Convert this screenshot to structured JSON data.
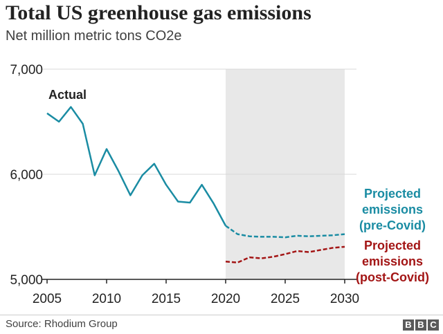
{
  "header": {
    "title": "Total US greenhouse gas emissions",
    "subtitle": "Net million metric tons CO2e"
  },
  "footer": {
    "source": "Source: Rhodium Group",
    "logo_letters": [
      "B",
      "B",
      "C"
    ]
  },
  "colors": {
    "actual": "#1a8ca3",
    "pre_covid": "#1a8ca3",
    "post_covid": "#a31515",
    "projection_band": "#e8e8e8",
    "grid": "#d9d9d9",
    "axis": "#222222"
  },
  "chart_data": {
    "type": "line",
    "title": "Total US greenhouse gas emissions",
    "subtitle": "Net million metric tons CO2e",
    "xlabel": "",
    "ylabel": "",
    "xlim": [
      2005,
      2030
    ],
    "ylim": [
      5000,
      7000
    ],
    "x_ticks": [
      2005,
      2010,
      2015,
      2020,
      2025,
      2030
    ],
    "y_ticks": [
      5000,
      6000,
      7000
    ],
    "y_tick_labels": [
      "5,000",
      "6,000",
      "7,000"
    ],
    "grid": "horizontal",
    "shaded_region": [
      2020,
      2030
    ],
    "annotations": {
      "actual": "Actual",
      "pre_covid": [
        "Projected",
        "emissions",
        "(pre-Covid)"
      ],
      "post_covid": [
        "Projected",
        "emissions",
        "(post-Covid)"
      ]
    },
    "series": [
      {
        "key": "actual",
        "style": "solid",
        "x": [
          2005,
          2006,
          2007,
          2008,
          2009,
          2010,
          2011,
          2012,
          2013,
          2014,
          2015,
          2016,
          2017,
          2018,
          2019,
          2020
        ],
        "values": [
          6580,
          6500,
          6640,
          6480,
          5990,
          6240,
          6030,
          5800,
          5990,
          6100,
          5900,
          5740,
          5730,
          5900,
          5720,
          5510
        ]
      },
      {
        "key": "pre_covid",
        "style": "dashed",
        "x": [
          2020,
          2021,
          2022,
          2023,
          2024,
          2025,
          2026,
          2027,
          2028,
          2029,
          2030
        ],
        "values": [
          5510,
          5430,
          5410,
          5405,
          5405,
          5400,
          5415,
          5410,
          5415,
          5420,
          5430
        ]
      },
      {
        "key": "post_covid",
        "style": "dashed",
        "x": [
          2020,
          2021,
          2022,
          2023,
          2024,
          2025,
          2026,
          2027,
          2028,
          2029,
          2030
        ],
        "values": [
          5170,
          5160,
          5210,
          5200,
          5215,
          5240,
          5270,
          5260,
          5280,
          5300,
          5310
        ]
      }
    ]
  }
}
